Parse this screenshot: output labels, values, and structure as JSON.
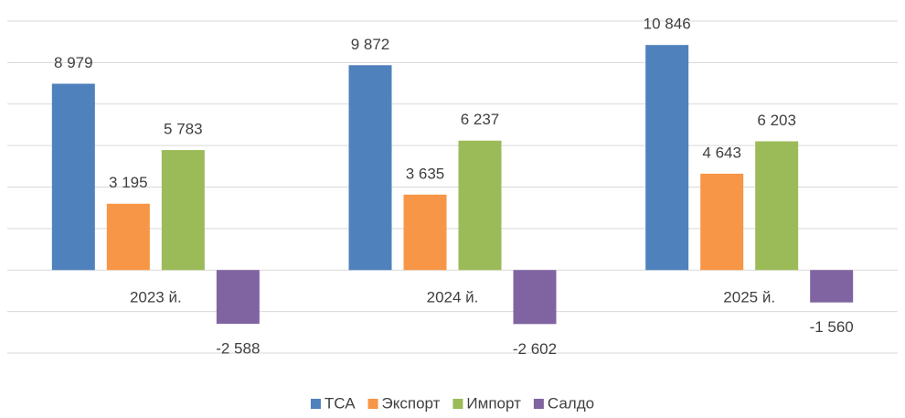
{
  "chart_data": {
    "type": "bar",
    "categories": [
      "2023 й.",
      "2024 й.",
      "2025 й."
    ],
    "series": [
      {
        "name": "ТСА",
        "color": "#4f81bd",
        "values": [
          8979,
          9872,
          10846
        ],
        "value_labels": [
          "8 979",
          "9 872",
          "10 846"
        ]
      },
      {
        "name": "Экспорт",
        "color": "#f79646",
        "values": [
          3195,
          3635,
          4643
        ],
        "value_labels": [
          "3 195",
          "3 635",
          "4 643"
        ]
      },
      {
        "name": "Импорт",
        "color": "#9bbb59",
        "values": [
          5783,
          6237,
          6203
        ],
        "value_labels": [
          "5 783",
          "6 237",
          "6 203"
        ]
      },
      {
        "name": "Салдо",
        "color": "#8064a2",
        "values": [
          -2588,
          -2602,
          -1560
        ],
        "value_labels": [
          "-2 588",
          "-2 602",
          "-1 560"
        ]
      }
    ],
    "ylim": [
      -4000,
      12000
    ],
    "yticks": [
      -4000,
      -2000,
      0,
      2000,
      4000,
      6000,
      8000,
      10000,
      12000
    ],
    "grid": true,
    "legend": "bottom"
  }
}
